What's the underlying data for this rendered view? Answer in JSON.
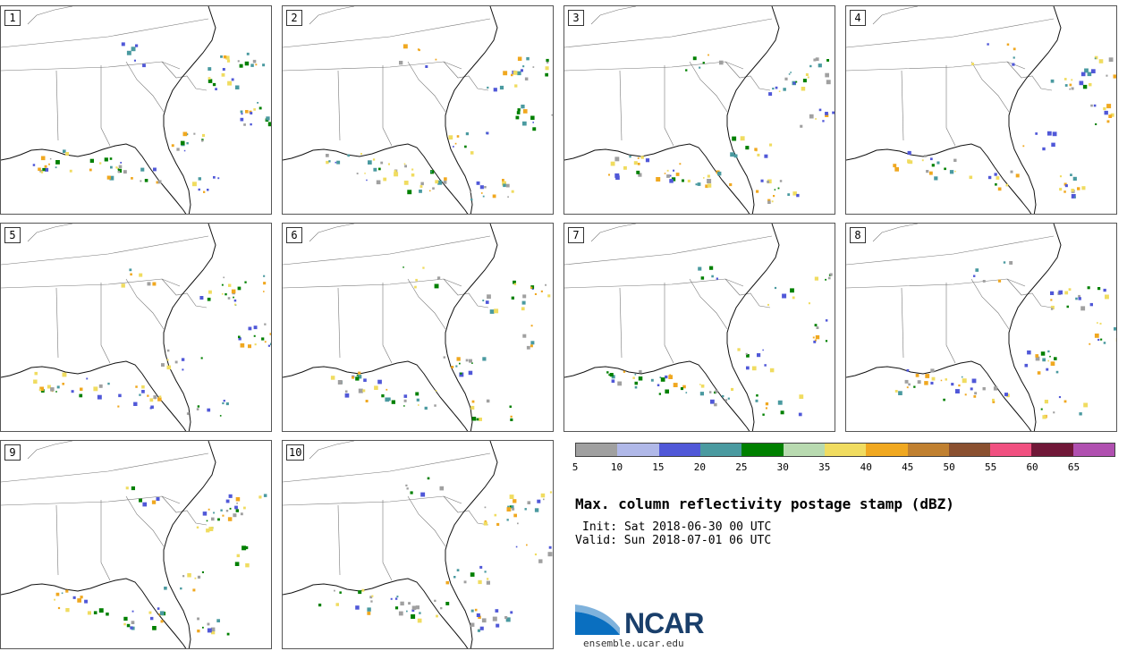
{
  "panels": [
    {
      "label": "1"
    },
    {
      "label": "2"
    },
    {
      "label": "3"
    },
    {
      "label": "4"
    },
    {
      "label": "5"
    },
    {
      "label": "6"
    },
    {
      "label": "7"
    },
    {
      "label": "8"
    },
    {
      "label": "9"
    },
    {
      "label": "10"
    }
  ],
  "colorbar": {
    "colors": [
      "#a0a0a0",
      "#b0b8e8",
      "#5058d8",
      "#4a9aa0",
      "#008000",
      "#b8dab0",
      "#f0dc60",
      "#f0a820",
      "#c08030",
      "#8a5030",
      "#f05080",
      "#701838",
      "#b050b0"
    ],
    "tick_labels": [
      "5",
      "10",
      "15",
      "20",
      "25",
      "30",
      "35",
      "40",
      "45",
      "50",
      "55",
      "60",
      "65"
    ]
  },
  "title": "Max. column reflectivity postage stamp (dBZ)",
  "init_text": "Init: Sat 2018-06-30 00 UTC",
  "valid_text": "Valid: Sun 2018-07-01 06 UTC",
  "logo": {
    "name": "NCAR",
    "site": "ensemble.ucar.edu"
  }
}
